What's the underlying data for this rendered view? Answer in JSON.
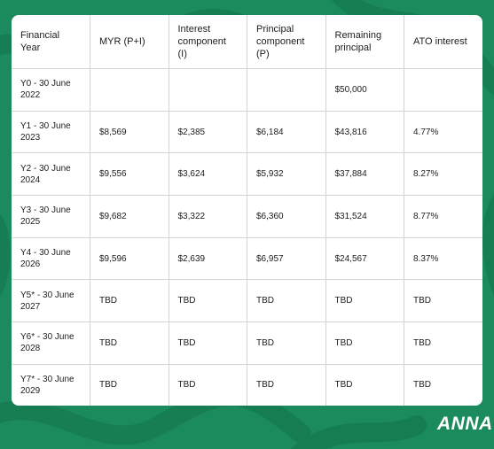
{
  "table": {
    "headers": [
      "Financial Year",
      "MYR (P+I)",
      "Interest component (I)",
      "Principal component (P)",
      "Remaining principal",
      "ATO interest"
    ],
    "rows": [
      [
        "Y0 - 30 June 2022",
        null,
        null,
        null,
        "$50,000",
        null
      ],
      [
        "Y1 - 30 June 2023",
        "$8,569",
        "$2,385",
        "$6,184",
        "$43,816",
        "4.77%"
      ],
      [
        "Y2 - 30 June 2024",
        "$9,556",
        "$3,624",
        "$5,932",
        "$37,884",
        "8.27%"
      ],
      [
        "Y3 - 30 June 2025",
        "$9,682",
        "$3,322",
        "$6,360",
        "$31,524",
        "8.77%"
      ],
      [
        "Y4 - 30 June 2026",
        "$9,596",
        "$2,639",
        "$6,957",
        "$24,567",
        "8.37%"
      ],
      [
        "Y5* - 30 June 2027",
        "TBD",
        "TBD",
        "TBD",
        "TBD",
        "TBD"
      ],
      [
        "Y6* - 30 June 2028",
        "TBD",
        "TBD",
        "TBD",
        "TBD",
        "TBD"
      ],
      [
        "Y7* - 30 June 2029",
        "TBD",
        "TBD",
        "TBD",
        "TBD",
        "TBD"
      ]
    ]
  },
  "logo": "ANNA"
}
